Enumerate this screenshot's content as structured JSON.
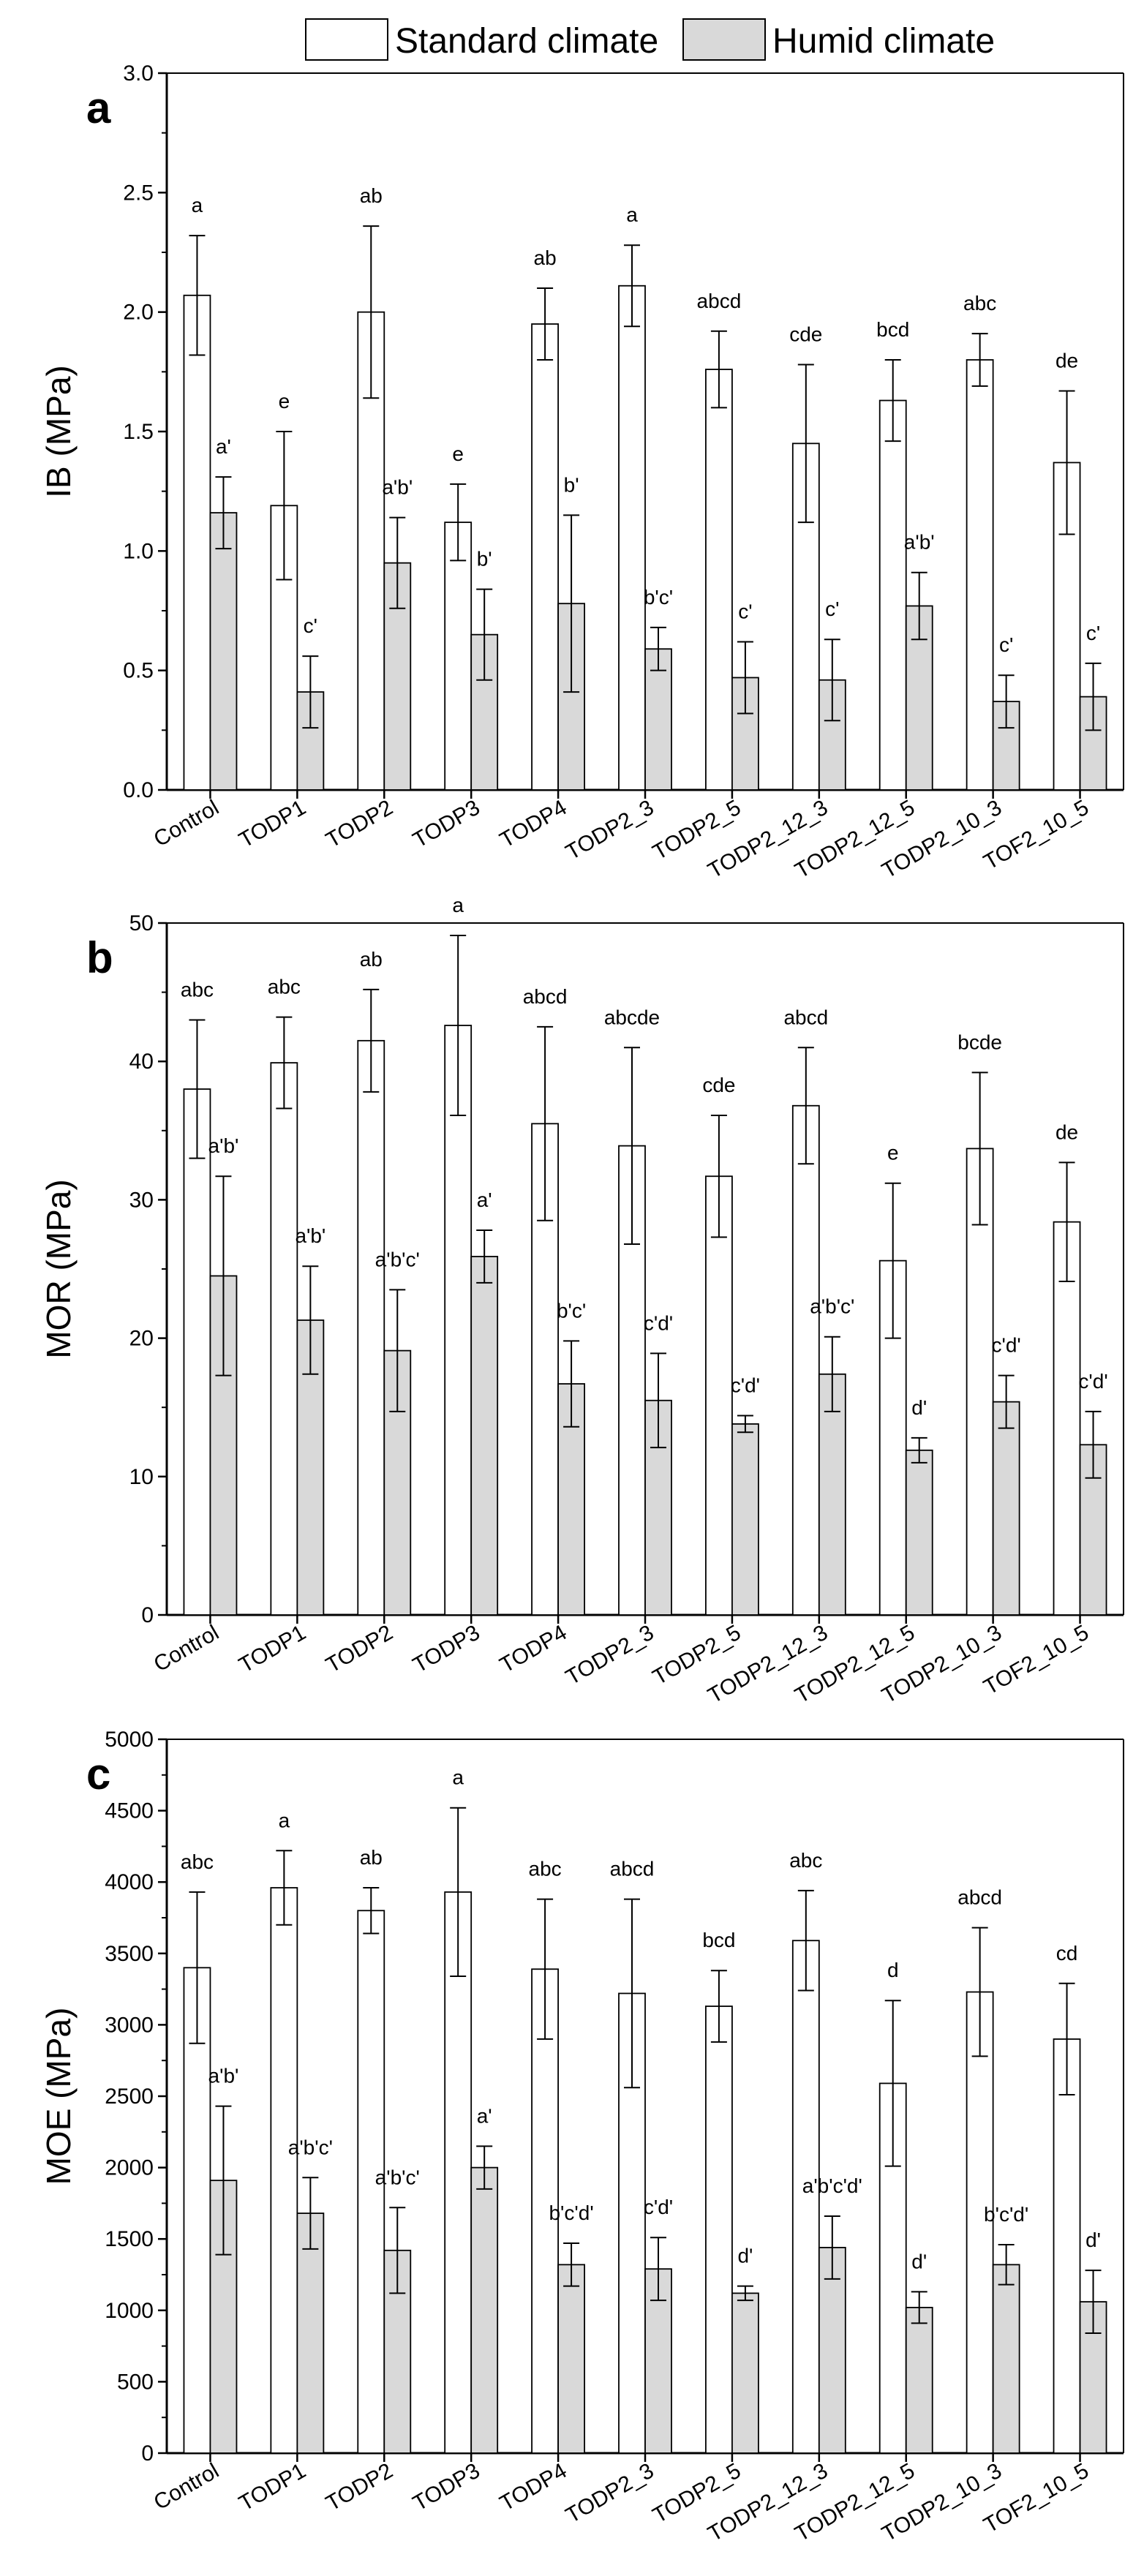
{
  "legend": {
    "standard_label": "Standard climate",
    "humid_label": "Humid climate"
  },
  "colors": {
    "standard_fill": "#ffffff",
    "humid_fill": "#d9d9d9",
    "stroke": "#000000"
  },
  "chart_data": [
    {
      "type": "bar",
      "panel_label": "a",
      "ylabel": "IB (MPa)",
      "xlabel": "",
      "ylim": [
        0.0,
        3.0
      ],
      "yticks": [
        0.0,
        0.5,
        1.0,
        1.5,
        2.0,
        2.5,
        3.0
      ],
      "ytick_labels": [
        "0.0",
        "0.5",
        "1.0",
        "1.5",
        "2.0",
        "2.5",
        "3.0"
      ],
      "categories": [
        "Control",
        "TODP1",
        "TODP2",
        "TODP3",
        "TODP4",
        "TODP2_3",
        "TODP2_5",
        "TODP2_12_3",
        "TODP2_12_5",
        "TODP2_10_3",
        "TOF2_10_5"
      ],
      "series": [
        {
          "name": "Standard climate",
          "values": [
            2.07,
            1.19,
            2.0,
            1.12,
            1.95,
            2.11,
            1.76,
            1.45,
            1.63,
            1.8,
            1.37
          ],
          "errors": [
            0.25,
            0.31,
            0.36,
            0.16,
            0.15,
            0.17,
            0.16,
            0.33,
            0.17,
            0.11,
            0.3
          ],
          "labels": [
            "a",
            "e",
            "ab",
            "e",
            "ab",
            "a",
            "abcd",
            "cde",
            "bcd",
            "abc",
            "de"
          ]
        },
        {
          "name": "Humid climate",
          "values": [
            1.16,
            0.41,
            0.95,
            0.65,
            0.78,
            0.59,
            0.47,
            0.46,
            0.77,
            0.37,
            0.39
          ],
          "errors": [
            0.15,
            0.15,
            0.19,
            0.19,
            0.37,
            0.09,
            0.15,
            0.17,
            0.14,
            0.11,
            0.14
          ],
          "labels": [
            "a'",
            "c'",
            "a'b'",
            "b'",
            "b'",
            "b'c'",
            "c'",
            "c'",
            "a'b'",
            "c'",
            "c'"
          ]
        }
      ]
    },
    {
      "type": "bar",
      "panel_label": "b",
      "ylabel": "MOR (MPa)",
      "xlabel": "",
      "ylim": [
        0,
        50
      ],
      "yticks": [
        0,
        10,
        20,
        30,
        40,
        50
      ],
      "ytick_labels": [
        "0",
        "10",
        "20",
        "30",
        "40",
        "50"
      ],
      "categories": [
        "Control",
        "TODP1",
        "TODP2",
        "TODP3",
        "TODP4",
        "TODP2_3",
        "TODP2_5",
        "TODP2_12_3",
        "TODP2_12_5",
        "TODP2_10_3",
        "TOF2_10_5"
      ],
      "series": [
        {
          "name": "Standard climate",
          "values": [
            38.0,
            39.9,
            41.5,
            42.6,
            35.5,
            33.9,
            31.7,
            36.8,
            25.6,
            33.7,
            28.4
          ],
          "errors": [
            5.0,
            3.3,
            3.7,
            6.5,
            7.0,
            7.1,
            4.4,
            4.2,
            5.6,
            5.5,
            4.3
          ],
          "labels": [
            "abc",
            "abc",
            "ab",
            "a",
            "abcd",
            "abcde",
            "cde",
            "abcd",
            "e",
            "bcde",
            "de"
          ]
        },
        {
          "name": "Humid climate",
          "values": [
            24.5,
            21.3,
            19.1,
            25.9,
            16.7,
            15.5,
            13.8,
            17.4,
            11.9,
            15.4,
            12.3
          ],
          "errors": [
            7.2,
            3.9,
            4.4,
            1.9,
            3.1,
            3.4,
            0.6,
            2.7,
            0.9,
            1.9,
            2.4
          ],
          "labels": [
            "a'b'",
            "a'b'",
            "a'b'c'",
            "a'",
            "b'c'",
            "c'd'",
            "c'd'",
            "a'b'c'",
            "d'",
            "c'd'",
            "c'd'"
          ]
        }
      ]
    },
    {
      "type": "bar",
      "panel_label": "c",
      "ylabel": "MOE (MPa)",
      "xlabel": "",
      "ylim": [
        0,
        5000
      ],
      "yticks": [
        0,
        500,
        1000,
        1500,
        2000,
        2500,
        3000,
        3500,
        4000,
        4500,
        5000
      ],
      "ytick_labels": [
        "0",
        "500",
        "1000",
        "1500",
        "2000",
        "2500",
        "3000",
        "3500",
        "4000",
        "4500",
        "5000"
      ],
      "categories": [
        "Control",
        "TODP1",
        "TODP2",
        "TODP3",
        "TODP4",
        "TODP2_3",
        "TODP2_5",
        "TODP2_12_3",
        "TODP2_12_5",
        "TODP2_10_3",
        "TOF2_10_5"
      ],
      "series": [
        {
          "name": "Standard climate",
          "values": [
            3400,
            3960,
            3800,
            3930,
            3390,
            3220,
            3130,
            3590,
            2590,
            3230,
            2900
          ],
          "errors": [
            530,
            260,
            160,
            590,
            490,
            660,
            250,
            350,
            580,
            450,
            390
          ],
          "labels": [
            "abc",
            "a",
            "ab",
            "a",
            "abc",
            "abcd",
            "bcd",
            "abc",
            "d",
            "abcd",
            "cd"
          ]
        },
        {
          "name": "Humid climate",
          "values": [
            1910,
            1680,
            1420,
            2000,
            1320,
            1290,
            1120,
            1440,
            1020,
            1320,
            1060
          ],
          "errors": [
            520,
            250,
            300,
            150,
            150,
            220,
            50,
            220,
            110,
            140,
            220
          ],
          "labels": [
            "a'b'",
            "a'b'c'",
            "a'b'c'",
            "a'",
            "b'c'd'",
            "c'd'",
            "d'",
            "a'b'c'd'",
            "d'",
            "b'c'd'",
            "d'"
          ]
        }
      ]
    }
  ]
}
